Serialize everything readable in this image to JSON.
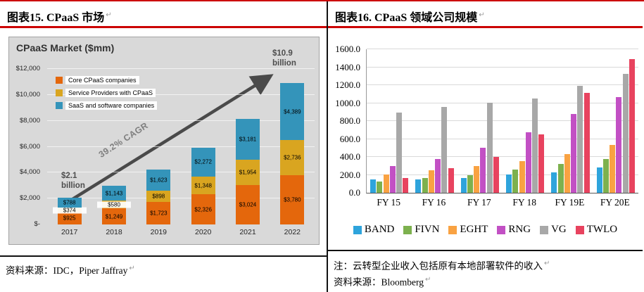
{
  "return_mark": "↵",
  "panels": {
    "left": {
      "title": "图表15. CPaaS 市场",
      "source": "资料来源：IDC，Piper Jaffray"
    },
    "right": {
      "title": "图表16. CPaaS 领域公司规模",
      "note": "注：云转型企业收入包括原有本地部署软件的收入",
      "source": "资料来源：Bloomberg"
    }
  },
  "chart_data": [
    {
      "type": "bar",
      "stacked": true,
      "title": "CPaaS Market ($mm)",
      "categories": [
        "2017",
        "2018",
        "2019",
        "2020",
        "2021",
        "2022"
      ],
      "series": [
        {
          "name": "Core CPaaS companies",
          "color": "#E4670C",
          "values": [
            925,
            1249,
            1723,
            2326,
            3024,
            3780
          ],
          "labels": [
            "$925",
            "$1,249",
            "$1,723",
            "$2,326",
            "$3,024",
            "$3,780"
          ]
        },
        {
          "name": "Service Providers with CPaaS",
          "color": "#D9A520",
          "values": [
            374,
            580,
            898,
            1348,
            1954,
            2736
          ],
          "labels": [
            "$374",
            "$580",
            "$898",
            "$1,348",
            "$1,954",
            "$2,736"
          ]
        },
        {
          "name": "SaaS and software companies",
          "color": "#3494BA",
          "values": [
            788,
            1143,
            1623,
            2272,
            3181,
            4389
          ],
          "labels": [
            "$788",
            "$1,143",
            "$1,623",
            "$2,272",
            "$3,181",
            "$4,389"
          ]
        }
      ],
      "ylim": [
        0,
        12000
      ],
      "y_ticks": [
        "$-",
        "$2,000",
        "$4,000",
        "$6,000",
        "$8,000",
        "$10,000",
        "$12,000"
      ],
      "annotations": {
        "start": [
          "$2.1",
          "billion"
        ],
        "end": [
          "$10.9",
          "billion"
        ],
        "cagr": "39.2% CAGR"
      },
      "legend_position": "inside-top-left",
      "plot_bg": "#D9D9D9"
    },
    {
      "type": "bar",
      "stacked": false,
      "title": "",
      "categories": [
        "FY 15",
        "FY 16",
        "FY 17",
        "FY 18",
        "FY 19E",
        "FY 20E"
      ],
      "series": [
        {
          "name": "BAND",
          "color": "#2EA4DC",
          "values": [
            150,
            152,
            163,
            204,
            230,
            282
          ]
        },
        {
          "name": "FIVN",
          "color": "#7DB14E",
          "values": [
            129,
            163,
            200,
            258,
            325,
            373
          ]
        },
        {
          "name": "EGHT",
          "color": "#F9A242",
          "values": [
            202,
            253,
            296,
            353,
            430,
            530
          ]
        },
        {
          "name": "RNG",
          "color": "#C250C4",
          "values": [
            296,
            380,
            504,
            674,
            875,
            1070
          ]
        },
        {
          "name": "VG",
          "color": "#A8A8A8",
          "values": [
            895,
            956,
            1003,
            1049,
            1190,
            1325
          ]
        },
        {
          "name": "TWLO",
          "color": "#E8435F",
          "values": [
            167,
            277,
            399,
            650,
            1110,
            1490
          ]
        }
      ],
      "ylim": [
        0,
        1600
      ],
      "y_ticks": [
        "0.0",
        "200.0",
        "400.0",
        "600.0",
        "800.0",
        "1000.0",
        "1200.0",
        "1400.0",
        "1600.0"
      ],
      "legend_position": "bottom",
      "grid": true
    }
  ]
}
